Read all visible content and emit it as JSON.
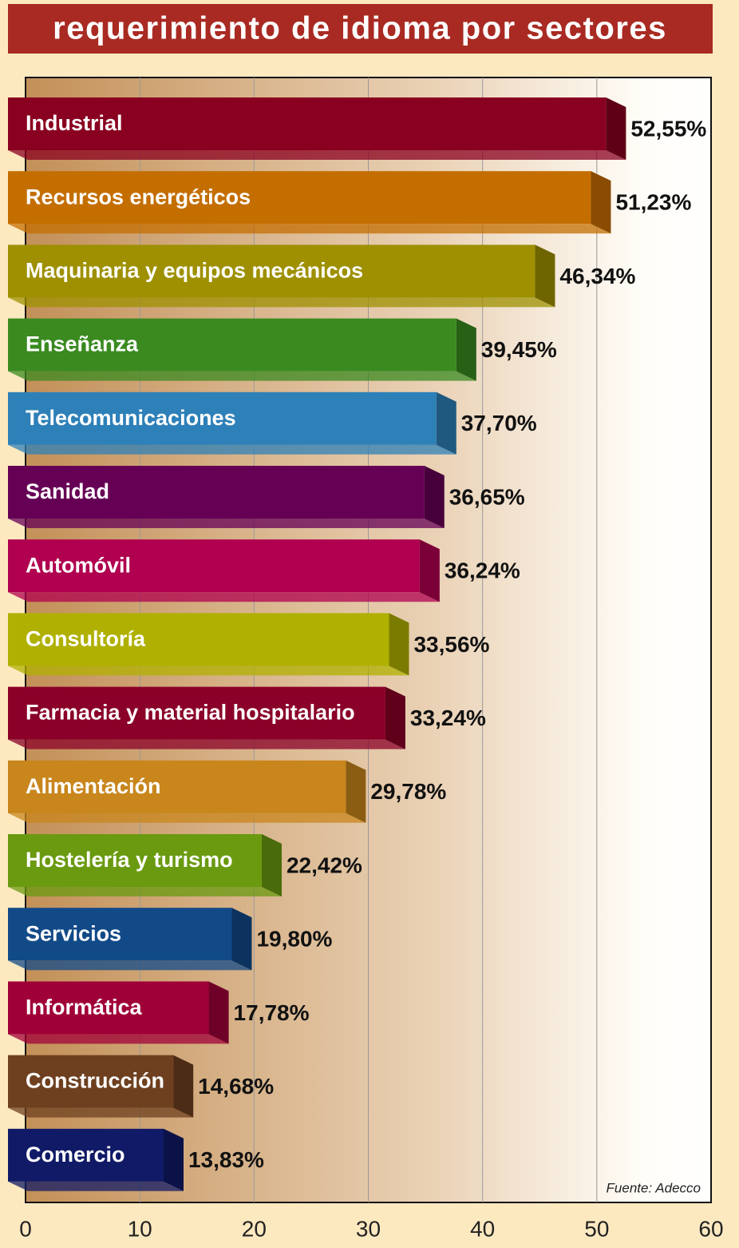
{
  "chart_data": {
    "type": "bar",
    "orientation": "horizontal",
    "title": "requerimiento de idioma por sectores",
    "source": "Fuente: Adecco",
    "categories": [
      "Industrial",
      "Recursos energéticos",
      "Maquinaria y equipos mecánicos",
      "Enseñanza",
      "Telecomunicaciones",
      "Sanidad",
      "Automóvil",
      "Consultoría",
      "Farmacia y material hospitalario",
      "Alimentación",
      "Hostelería y turismo",
      "Servicios",
      "Informática",
      "Construcción",
      "Comercio"
    ],
    "values": [
      52.55,
      51.23,
      46.34,
      39.45,
      37.7,
      36.65,
      36.24,
      33.56,
      33.24,
      29.78,
      22.42,
      19.8,
      17.78,
      14.68,
      13.83
    ],
    "value_labels": [
      "52,55%",
      "51,23%",
      "46,34%",
      "39,45%",
      "37,70%",
      "36,65%",
      "36,24%",
      "33,56%",
      "33,24%",
      "29,78%",
      "22,42%",
      "19,80%",
      "17,78%",
      "14,68%",
      "13,83%"
    ],
    "colors": [
      "#8a0020",
      "#c46e00",
      "#9e9000",
      "#3a8a20",
      "#2e80b8",
      "#660055",
      "#b0004f",
      "#b0b000",
      "#8a0028",
      "#c8861c",
      "#6a9a10",
      "#124a88",
      "#a00038",
      "#6e4020",
      "#101a66"
    ],
    "xlim": [
      0,
      60
    ],
    "xticks": [
      0,
      10,
      20,
      30,
      40,
      50,
      60
    ],
    "grid": true
  }
}
